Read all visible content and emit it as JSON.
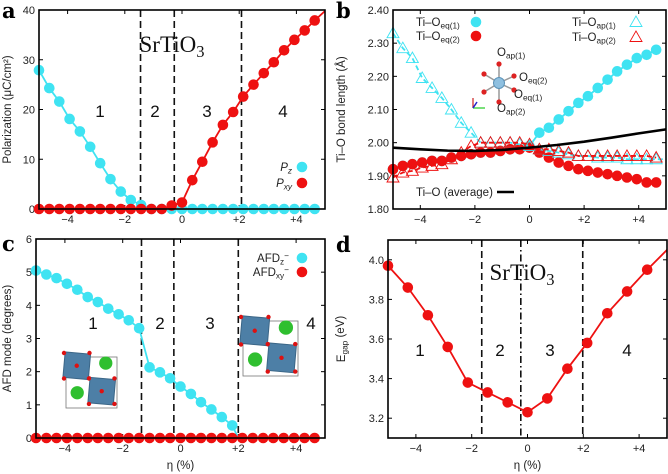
{
  "colors": {
    "cyan": "#3fe3f2",
    "red": "#ee1111",
    "black": "#000000",
    "dashed": "#111111"
  },
  "chart_data": [
    {
      "panel": "a",
      "type": "line",
      "xlim": [
        -5,
        5
      ],
      "ylim": [
        0,
        40
      ],
      "xticks": [
        "−4",
        "−2",
        "0",
        "+2",
        "+4"
      ],
      "xtick_values": [
        -4,
        -2,
        0,
        2,
        4
      ],
      "yticks": [
        "0",
        "10",
        "20",
        "30",
        "40"
      ],
      "ytick_values": [
        0,
        10,
        20,
        30,
        40
      ],
      "ylabel": "Polarization (μC/cm²)",
      "xlabel": "",
      "annotation": {
        "main": "SrTiO",
        "sub": "3"
      },
      "regions": [
        "1",
        "2",
        "3",
        "4"
      ],
      "boundaries": [
        -1.45,
        -0.27,
        2.08
      ],
      "legend_position": "right",
      "series": [
        {
          "label": "P",
          "label_sub": "z",
          "color": "cyan",
          "marker": "circle",
          "x": [
            -5,
            -4.64,
            -4.29,
            -3.93,
            -3.57,
            -3.21,
            -2.86,
            -2.5,
            -2.14,
            -1.79,
            -1.43,
            -1.07,
            -0.71,
            -0.36,
            0,
            0.36,
            0.71,
            1.07,
            1.43,
            1.79,
            2.14,
            2.5,
            2.86,
            3.21,
            3.57,
            3.93,
            4.29,
            4.64
          ],
          "y": [
            27.9,
            24.3,
            21.6,
            18.1,
            15.6,
            12.5,
            9.2,
            6.0,
            3.5,
            1.8,
            0.8,
            0,
            0,
            0,
            0,
            0,
            0,
            0,
            0,
            0,
            0,
            0,
            0,
            0,
            0,
            0,
            0,
            0
          ]
        },
        {
          "label": "P",
          "label_sub": "xy",
          "color": "red",
          "marker": "circle",
          "line_end": [
            5,
            39.8
          ],
          "x": [
            -5,
            -4.64,
            -4.29,
            -3.93,
            -3.57,
            -3.21,
            -2.86,
            -2.5,
            -2.14,
            -1.79,
            -1.43,
            -1.07,
            -0.71,
            -0.36,
            0,
            0.36,
            0.71,
            1.07,
            1.43,
            1.79,
            2.14,
            2.5,
            2.86,
            3.21,
            3.57,
            3.93,
            4.29,
            4.64
          ],
          "y": [
            0,
            0,
            0,
            0,
            0,
            0,
            0,
            0,
            0,
            0,
            0,
            0,
            0,
            0.7,
            1.3,
            5.8,
            9.5,
            13.4,
            16.9,
            19.5,
            22.6,
            25.0,
            27.3,
            29.5,
            31.9,
            34.0,
            35.9,
            37.9
          ]
        }
      ]
    },
    {
      "panel": "b",
      "type": "line",
      "xlim": [
        -5,
        5
      ],
      "ylim": [
        1.8,
        2.4
      ],
      "xticks": [
        "−4",
        "−2",
        "0",
        "+2",
        "+4"
      ],
      "xtick_values": [
        -4,
        -2,
        0,
        2,
        4
      ],
      "yticks": [
        "1.80",
        "1.90",
        "2.00",
        "2.10",
        "2.20",
        "2.30",
        "2.40"
      ],
      "ytick_values": [
        1.8,
        1.9,
        2.0,
        2.1,
        2.2,
        2.3,
        2.4
      ],
      "ylabel": "Ti–O bond length (Å)",
      "xlabel": "",
      "legend_position": "top",
      "inset_labels": [
        {
          "main": "O",
          "sub": "ap(1)"
        },
        {
          "main": "O",
          "sub": "eq(2)"
        },
        {
          "main": "O",
          "sub": "eq(1)"
        },
        {
          "main": "O",
          "sub": "ap(2)"
        }
      ],
      "series": [
        {
          "label": "Ti–O",
          "label_sub": "eq(1)",
          "color": "cyan",
          "marker": "circle",
          "x": [
            -5,
            -4.64,
            -4.29,
            -3.93,
            -3.57,
            -3.21,
            -2.86,
            -2.5,
            -2.14,
            -1.79,
            -1.43,
            -1.07,
            -0.71,
            -0.36,
            0,
            0.36,
            0.71,
            1.07,
            1.43,
            1.79,
            2.14,
            2.5,
            2.86,
            3.21,
            3.57,
            3.93,
            4.29,
            4.64
          ],
          "y": [
            1.92,
            1.93,
            1.935,
            1.94,
            1.945,
            1.945,
            1.955,
            1.96,
            1.965,
            1.97,
            1.97,
            1.975,
            1.98,
            1.98,
            1.99,
            2.03,
            2.045,
            2.07,
            2.095,
            2.12,
            2.14,
            2.165,
            2.19,
            2.215,
            2.235,
            2.255,
            2.265,
            2.28
          ]
        },
        {
          "label": "Ti–O",
          "label_sub": "eq(2)",
          "color": "red",
          "marker": "circle",
          "x": [
            -5,
            -4.64,
            -4.29,
            -3.93,
            -3.57,
            -3.21,
            -2.86,
            -2.5,
            -2.14,
            -1.79,
            -1.43,
            -1.07,
            -0.71,
            -0.36,
            0,
            0.36,
            0.71,
            1.07,
            1.43,
            1.79,
            2.14,
            2.5,
            2.86,
            3.21,
            3.57,
            3.93,
            4.29,
            4.64
          ],
          "y": [
            1.92,
            1.93,
            1.935,
            1.94,
            1.945,
            1.945,
            1.955,
            1.96,
            1.965,
            1.97,
            1.97,
            1.975,
            1.98,
            1.98,
            1.985,
            1.97,
            1.955,
            1.94,
            1.93,
            1.92,
            1.915,
            1.91,
            1.905,
            1.9,
            1.895,
            1.89,
            1.88,
            1.88
          ]
        },
        {
          "label": "Ti–O",
          "label_sub": "ap(1)",
          "color": "cyan",
          "marker": "triangle-open",
          "dashed": true,
          "line_end": [
            5,
            1.95
          ],
          "x": [
            -5,
            -4.64,
            -4.29,
            -3.93,
            -3.57,
            -3.21,
            -2.86,
            -2.5,
            -2.14,
            -1.79,
            -1.43,
            -1.07,
            -0.71,
            -0.36,
            0,
            0.36,
            0.71,
            1.07,
            1.43,
            1.79,
            2.14,
            2.5,
            2.86,
            3.21,
            3.57,
            3.93,
            4.29,
            4.64
          ],
          "y": [
            2.33,
            2.285,
            2.255,
            2.195,
            2.165,
            2.135,
            2.1,
            2.06,
            2.03,
            2.0,
            2.0,
            2.0,
            2.0,
            1.995,
            1.99,
            1.98,
            1.975,
            1.97,
            1.965,
            1.96,
            1.96,
            1.955,
            1.955,
            1.955,
            1.95,
            1.95,
            1.95,
            1.95
          ]
        },
        {
          "label": "Ti–O",
          "label_sub": "ap(2)",
          "color": "red",
          "marker": "triangle-open",
          "dashed": true,
          "x": [
            -5,
            -4.64,
            -4.29,
            -3.93,
            -3.57,
            -3.21,
            -2.86,
            -2.5,
            -2.14,
            -1.79,
            -1.43,
            -1.07,
            -0.71,
            -0.36,
            0,
            0.36,
            0.71,
            1.07,
            1.43,
            1.79,
            2.14,
            2.5,
            2.86,
            3.21,
            3.57,
            3.93,
            4.29,
            4.64
          ],
          "y": [
            1.895,
            1.91,
            1.915,
            1.925,
            1.93,
            1.935,
            1.95,
            1.97,
            1.99,
            2.0,
            2.0,
            2.0,
            2.0,
            2.0,
            1.995,
            1.98,
            1.98,
            1.975,
            1.97,
            1.96,
            1.96,
            1.96,
            1.96,
            1.96,
            1.96,
            1.96,
            1.96,
            1.955
          ]
        },
        {
          "label": "Ti–O (average)",
          "label_sub": "",
          "color": "black",
          "marker": "none",
          "x": [
            -5,
            -4,
            -3,
            -2,
            -1,
            0,
            1,
            2,
            3,
            4,
            5
          ],
          "y": [
            1.985,
            1.98,
            1.976,
            1.975,
            1.978,
            1.985,
            1.993,
            2.003,
            2.015,
            2.028,
            2.04
          ]
        }
      ]
    },
    {
      "panel": "c",
      "type": "line",
      "xlim": [
        -5,
        5
      ],
      "ylim": [
        0,
        6
      ],
      "xticks": [
        "−4",
        "−2",
        "0",
        "+2",
        "+4"
      ],
      "xtick_values": [
        -4,
        -2,
        0,
        2,
        4
      ],
      "yticks": [
        "0",
        "1",
        "2",
        "3",
        "4",
        "5",
        "6"
      ],
      "ytick_values": [
        0,
        1,
        2,
        3,
        4,
        5,
        6
      ],
      "ylabel": "AFD mode (degrees)",
      "xlabel": "η (%)",
      "regions": [
        "1",
        "2",
        "3",
        "4"
      ],
      "boundaries": [
        -1.35,
        -0.23,
        2.0
      ],
      "legend_position": "top-right",
      "series": [
        {
          "label": "AFD",
          "label_sub": "z",
          "label_sup": "−",
          "color": "cyan",
          "marker": "circle",
          "line_end": [
            2.0,
            0
          ],
          "x": [
            -5,
            -4.64,
            -4.29,
            -3.93,
            -3.57,
            -3.21,
            -2.86,
            -2.5,
            -2.14,
            -1.79,
            -1.43,
            -1.07,
            -0.71,
            -0.36,
            0,
            0.36,
            0.71,
            1.07,
            1.43,
            1.79
          ],
          "y": [
            5.05,
            4.93,
            4.82,
            4.65,
            4.47,
            4.25,
            4.1,
            3.9,
            3.73,
            3.55,
            3.31,
            2.13,
            1.98,
            1.8,
            1.55,
            1.33,
            1.08,
            0.86,
            0.63,
            0.38
          ]
        },
        {
          "label": "AFD",
          "label_sub": "xy",
          "label_sup": "−",
          "color": "red",
          "marker": "circle",
          "x": [
            -5,
            -4.64,
            -4.29,
            -3.93,
            -3.57,
            -3.21,
            -2.86,
            -2.5,
            -2.14,
            -1.79,
            -1.43,
            -1.07,
            -0.71,
            -0.36,
            0,
            0.36,
            0.71,
            1.07,
            1.43,
            1.79,
            2.14,
            2.5,
            2.86,
            3.21,
            3.57,
            3.93,
            4.29,
            4.64
          ],
          "y": [
            0,
            0,
            0,
            0,
            0,
            0,
            0,
            0,
            0,
            0,
            0,
            0,
            0,
            0,
            0,
            0,
            0,
            0,
            0,
            0,
            0,
            0,
            0,
            0,
            0,
            0,
            0,
            0
          ]
        }
      ]
    },
    {
      "panel": "d",
      "type": "line",
      "xlim": [
        -5,
        5
      ],
      "ylim": [
        3.1,
        4.1
      ],
      "xticks": [
        "−4",
        "−2",
        "0",
        "+2",
        "+4"
      ],
      "xtick_values": [
        -4,
        -2,
        0,
        2,
        4
      ],
      "yticks": [
        "3.2",
        "3.4",
        "3.6",
        "3.8",
        "4.0"
      ],
      "ytick_values": [
        3.2,
        3.4,
        3.6,
        3.8,
        4.0
      ],
      "ylabel": {
        "main": "E",
        "sub": "gap",
        "rest": " (eV)"
      },
      "xlabel": "η (%)",
      "annotation": {
        "main": "SrTiO",
        "sub": "3"
      },
      "regions": [
        "1",
        "2",
        "3",
        "4"
      ],
      "boundaries": [
        -1.64,
        -0.24,
        1.98
      ],
      "series": [
        {
          "color": "red",
          "marker": "circle",
          "line_end": [
            5,
            4.05
          ],
          "x": [
            -5,
            -4.29,
            -3.57,
            -2.86,
            -2.14,
            -1.43,
            -0.71,
            0,
            0.71,
            1.43,
            2.14,
            2.86,
            3.57,
            4.29
          ],
          "y": [
            3.97,
            3.86,
            3.72,
            3.56,
            3.38,
            3.33,
            3.28,
            3.23,
            3.3,
            3.45,
            3.58,
            3.73,
            3.84,
            3.95
          ]
        }
      ]
    }
  ],
  "panel_letters": [
    "a",
    "b",
    "c",
    "d"
  ]
}
